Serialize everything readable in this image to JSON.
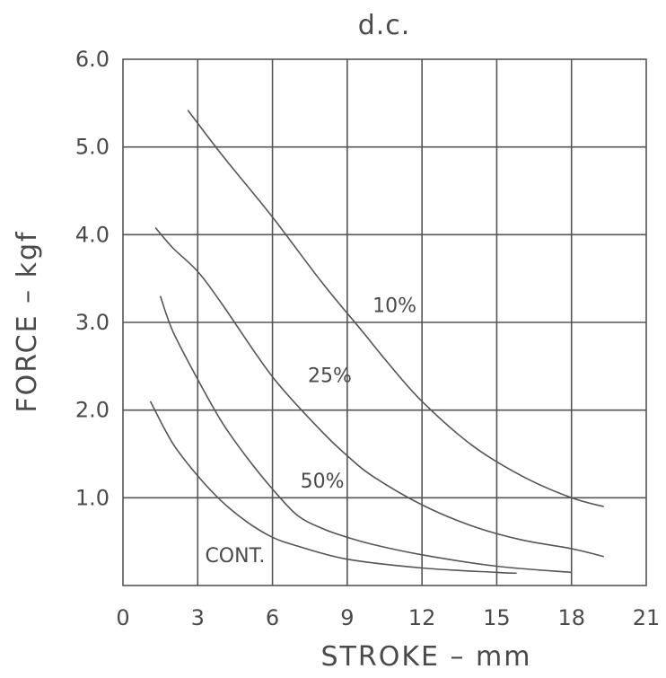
{
  "chart_data": {
    "type": "line",
    "title": "d.c.",
    "xlabel": "STROKE – mm",
    "ylabel": "FORCE – kgf",
    "xlim": [
      0,
      21
    ],
    "ylim": [
      0,
      6
    ],
    "x_ticks": [
      "0",
      "3",
      "6",
      "9",
      "12",
      "15",
      "18",
      "21"
    ],
    "y_ticks": [
      "1.0",
      "2.0",
      "3.0",
      "4.0",
      "5.0",
      "6.0"
    ],
    "grid": true,
    "series": [
      {
        "name": "10%",
        "x": [
          2.6,
          4,
          6,
          8,
          9.6,
          10.6,
          12,
          14,
          16,
          18,
          19.3
        ],
        "y": [
          5.42,
          4.9,
          4.2,
          3.45,
          2.9,
          2.55,
          2.1,
          1.6,
          1.25,
          1.0,
          0.9
        ]
      },
      {
        "name": "25%",
        "x": [
          1.3,
          2,
          3,
          4,
          6,
          8,
          9,
          10,
          12,
          14,
          16,
          18,
          19.3
        ],
        "y": [
          4.08,
          3.85,
          3.58,
          3.2,
          2.38,
          1.75,
          1.48,
          1.25,
          0.92,
          0.68,
          0.52,
          0.42,
          0.33
        ]
      },
      {
        "name": "50%",
        "x": [
          1.5,
          2,
          3,
          4,
          5,
          6,
          7,
          8,
          9,
          10,
          12,
          15,
          18
        ],
        "y": [
          3.3,
          2.9,
          2.35,
          1.85,
          1.45,
          1.1,
          0.8,
          0.65,
          0.55,
          0.47,
          0.35,
          0.22,
          0.15
        ]
      },
      {
        "name": "CONT.",
        "x": [
          1.1,
          2,
          3,
          4,
          5,
          6,
          7,
          9,
          12,
          15,
          15.8
        ],
        "y": [
          2.1,
          1.62,
          1.25,
          0.95,
          0.72,
          0.55,
          0.45,
          0.3,
          0.2,
          0.15,
          0.14
        ]
      }
    ],
    "series_labels": [
      {
        "text": "10%",
        "at": [
          10.9,
          3.2
        ]
      },
      {
        "text": "25%",
        "at": [
          8.3,
          2.4
        ]
      },
      {
        "text": "50%",
        "at": [
          8.0,
          1.2
        ]
      },
      {
        "text": "CONT.",
        "at": [
          4.5,
          0.35
        ]
      }
    ]
  }
}
